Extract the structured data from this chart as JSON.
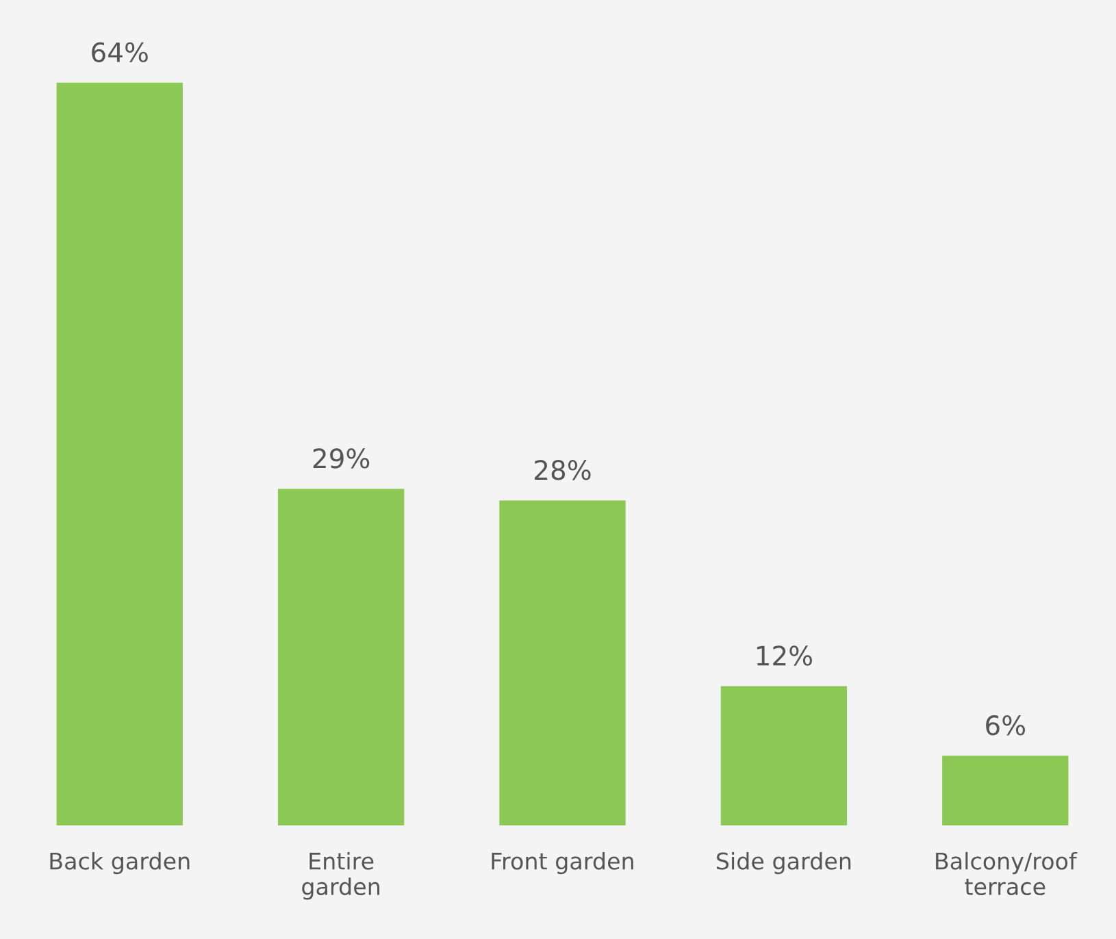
{
  "chart_data": {
    "type": "bar",
    "categories": [
      "Back garden",
      "Entire\ngarden",
      "Front garden",
      "Side garden",
      "Balcony/roof\nterrace"
    ],
    "values": [
      64,
      29,
      28,
      12,
      6
    ],
    "color": "#8bc954",
    "value_labels": [
      "64%",
      "29%",
      "28%",
      "12%",
      "6%"
    ],
    "tick_labels": "x",
    "grid": false,
    "legend": false
  }
}
